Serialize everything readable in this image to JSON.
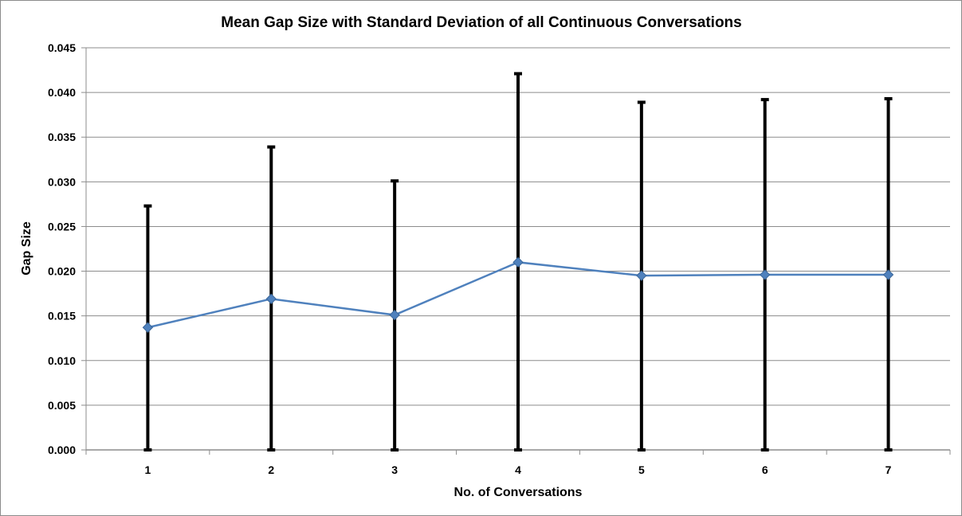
{
  "chart_data": {
    "type": "line",
    "title": "Mean Gap Size with Standard Deviation of all Continuous Conversations",
    "xlabel": "No. of Conversations",
    "ylabel": "Gap Size",
    "categories": [
      "1",
      "2",
      "3",
      "4",
      "5",
      "6",
      "7"
    ],
    "ylim": [
      0,
      0.045
    ],
    "yticks": [
      "0.000",
      "0.005",
      "0.010",
      "0.015",
      "0.020",
      "0.025",
      "0.030",
      "0.035",
      "0.040",
      "0.045"
    ],
    "grid": true,
    "legend": "none",
    "series": [
      {
        "values": [
          0.0137,
          0.0169,
          0.0151,
          0.021,
          0.0195,
          0.0196,
          0.0196
        ],
        "error_low": [
          0.0,
          0.0,
          0.0,
          0.0,
          0.0,
          0.0,
          0.0
        ],
        "error_high": [
          0.0273,
          0.0339,
          0.0301,
          0.0421,
          0.0389,
          0.0392,
          0.0393
        ],
        "color": "#4f81bd",
        "marker": "diamond"
      }
    ],
    "error_bar_color": "#000000",
    "gridline_color": "#8c8c8c"
  }
}
